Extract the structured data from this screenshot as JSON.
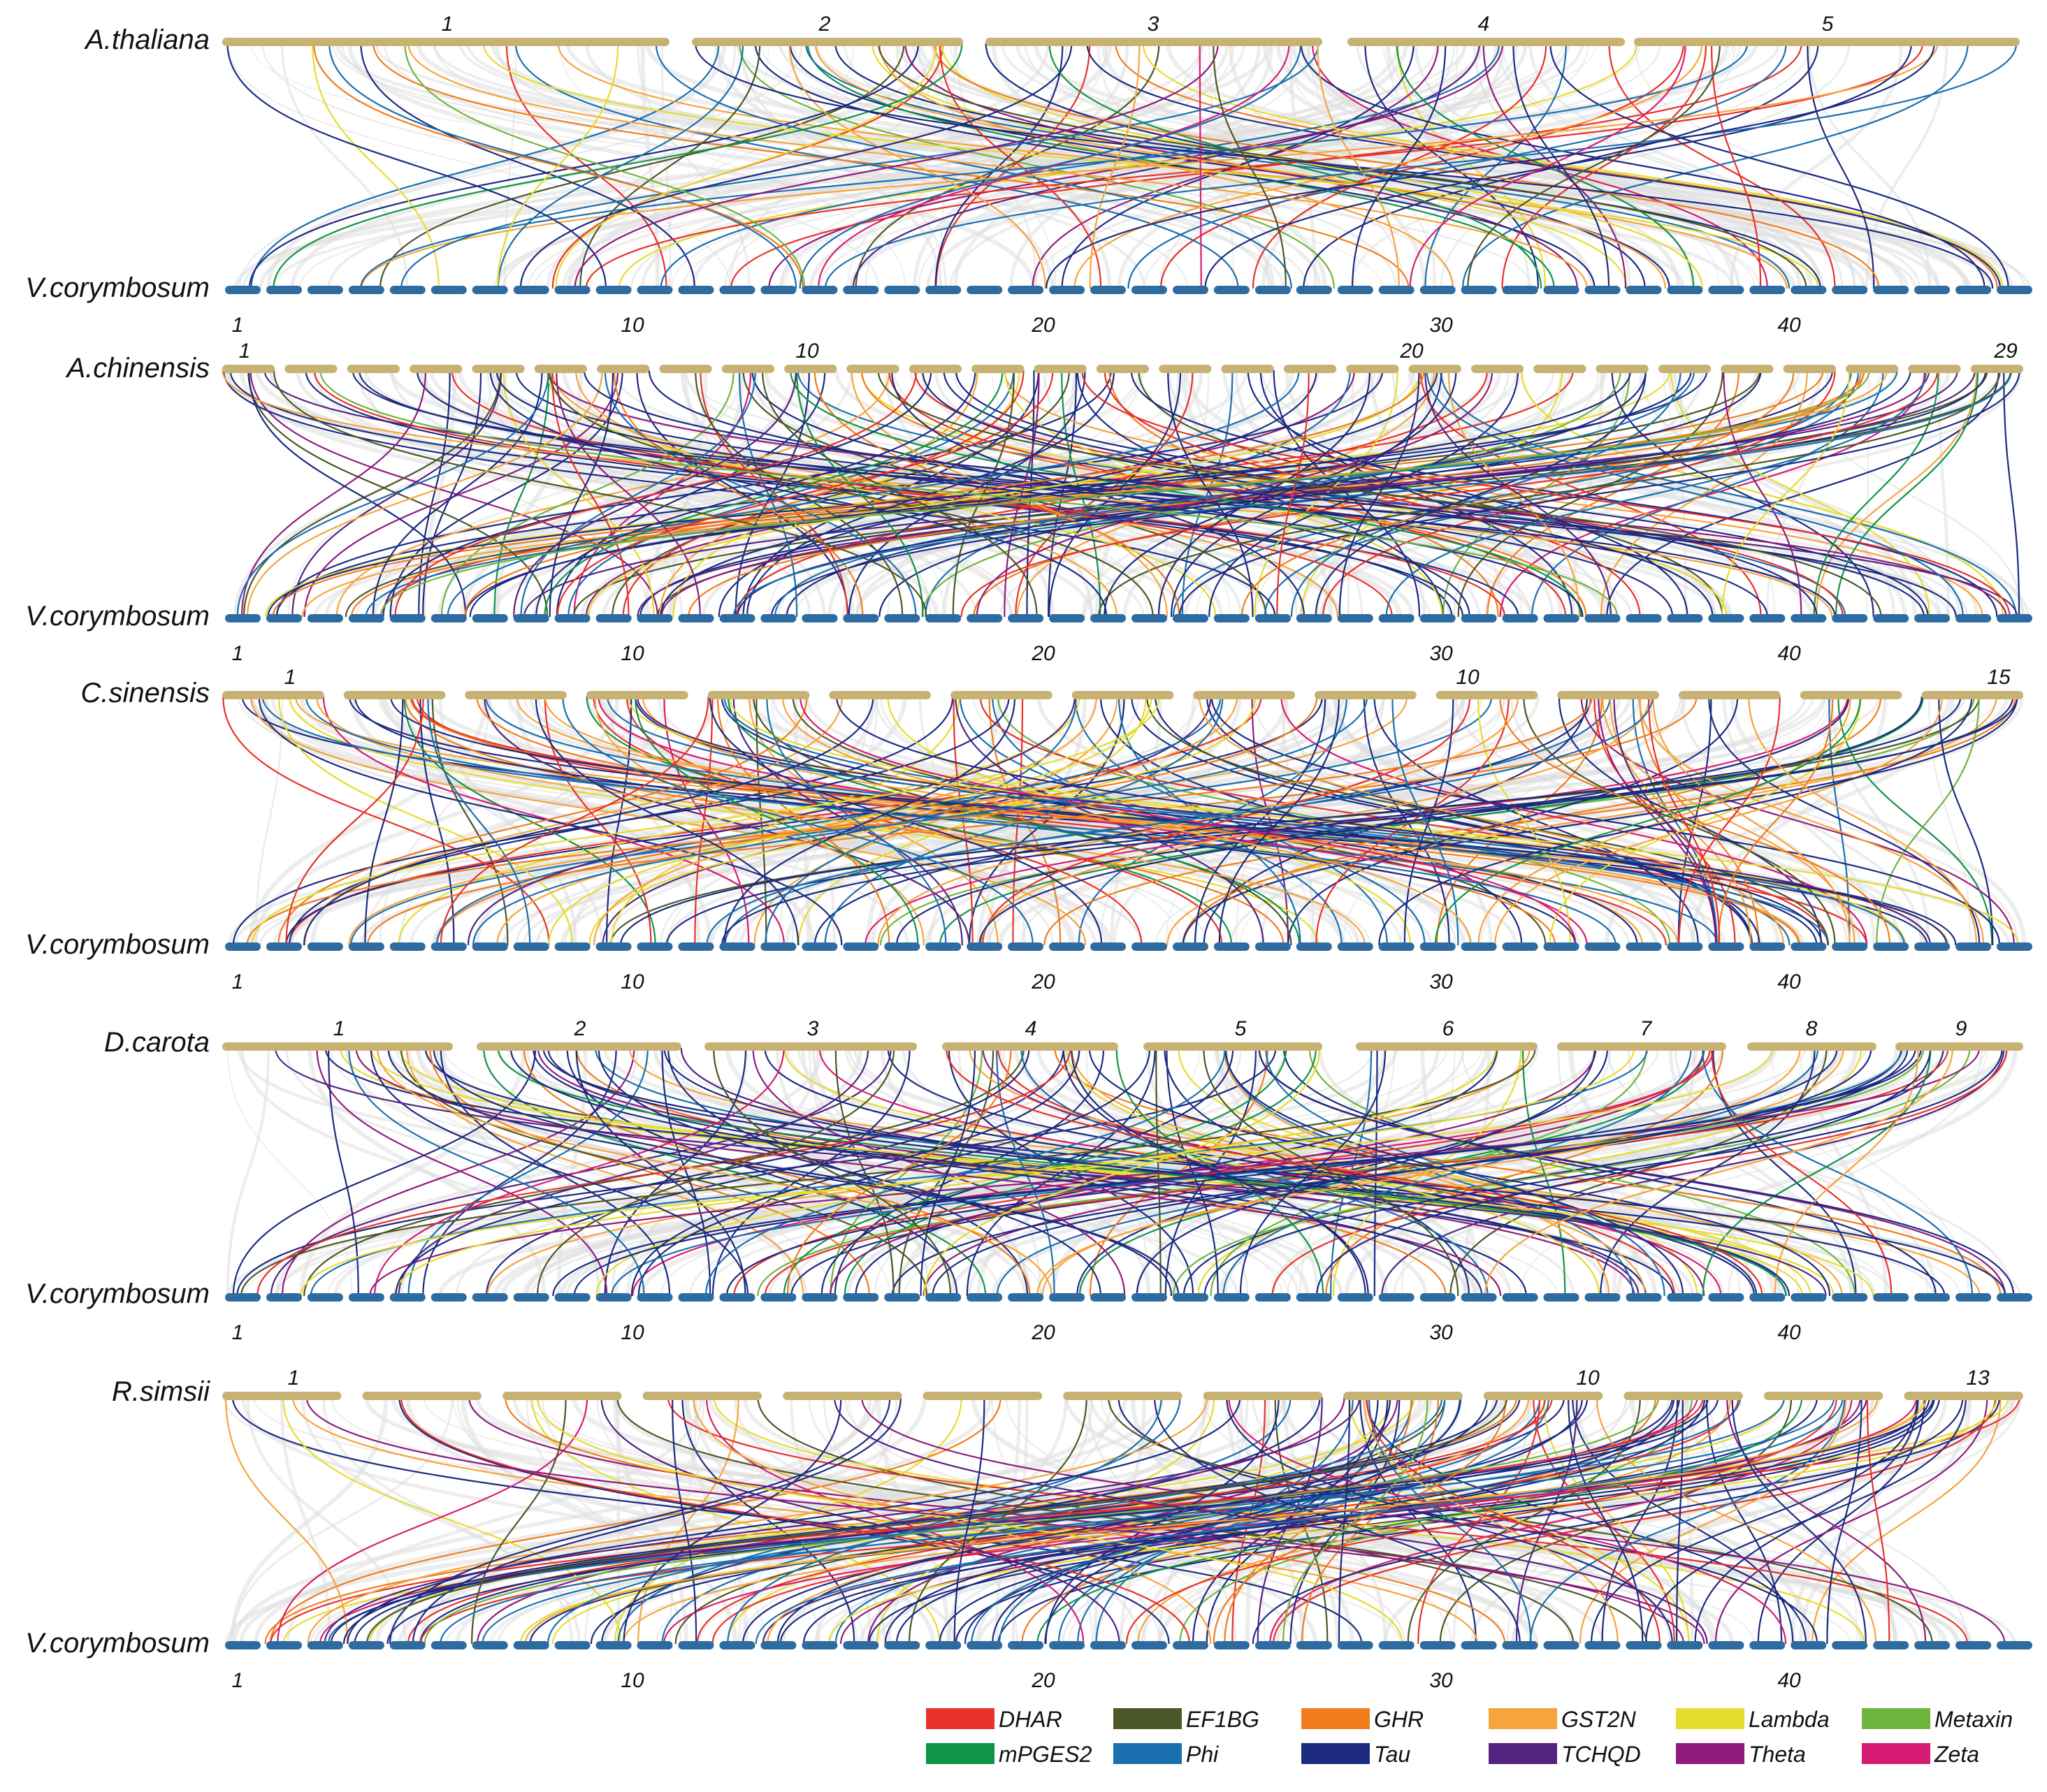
{
  "figure": {
    "reference_species": "V.corymbosum",
    "reference_tick_labels": [
      "1",
      "10",
      "20",
      "30",
      "40"
    ],
    "colors": {
      "reference_track": "#2e6ba0",
      "query_track": "#c8b273",
      "background_links": "#dedede"
    },
    "panels": [
      {
        "species": "A.thaliana",
        "reference": "V.corymbosum",
        "chromosome_labels": [
          "1",
          "2",
          "3",
          "4",
          "5"
        ]
      },
      {
        "species": "A.chinensis",
        "reference": "V.corymbosum",
        "chromosome_labels": [
          "1",
          "10",
          "20",
          "29"
        ]
      },
      {
        "species": "C.sinensis",
        "reference": "V.corymbosum",
        "chromosome_labels": [
          "1",
          "10",
          "15"
        ]
      },
      {
        "species": "D.carota",
        "reference": "V.corymbosum",
        "chromosome_labels": [
          "1",
          "2",
          "3",
          "4",
          "5",
          "6",
          "7",
          "8",
          "9"
        ]
      },
      {
        "species": "R.simsii",
        "reference": "V.corymbosum",
        "chromosome_labels": [
          "1",
          "10",
          "13"
        ]
      }
    ],
    "legend": [
      {
        "label": "DHAR",
        "color": "#e8312a"
      },
      {
        "label": "EF1BG",
        "color": "#4b5726"
      },
      {
        "label": "GHR",
        "color": "#f07d1e"
      },
      {
        "label": "GST2N",
        "color": "#f6a43c"
      },
      {
        "label": "Lambda",
        "color": "#e6dc2e"
      },
      {
        "label": "Metaxin",
        "color": "#6fb43e"
      },
      {
        "label": "mPGES2",
        "color": "#109447"
      },
      {
        "label": "Phi",
        "color": "#1a6fae"
      },
      {
        "label": "Tau",
        "color": "#1c2a80"
      },
      {
        "label": "TCHQD",
        "color": "#52247f"
      },
      {
        "label": "Theta",
        "color": "#8e1b7d"
      },
      {
        "label": "Zeta",
        "color": "#d81b72"
      }
    ]
  }
}
